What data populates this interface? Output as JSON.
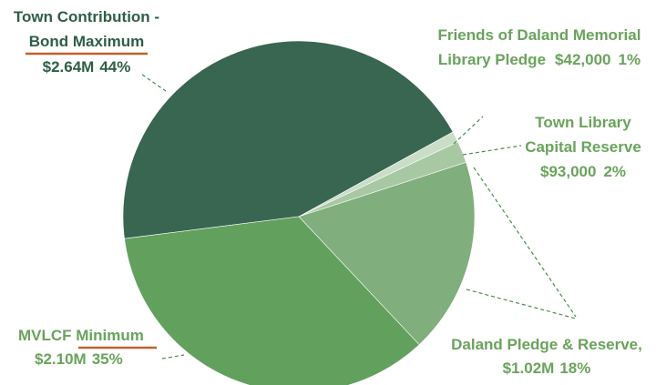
{
  "chart_data": {
    "type": "pie",
    "categories": [
      [
        "Town Contribution -",
        "Bond Maximum"
      ],
      [
        "Friends of Daland Memorial",
        "Library Pledge"
      ],
      [
        "Town Library",
        "Capital Reserve"
      ],
      [
        "Daland Pledge & Reserve,"
      ],
      [
        "MVLCF Minimum"
      ]
    ],
    "values": [
      44,
      1,
      2,
      18,
      35
    ],
    "value_labels": [
      "44%",
      "1%",
      "2%",
      "18%",
      "35%"
    ],
    "amounts": [
      "$2.64M",
      "$42,000",
      "$93,000",
      "$1.02M",
      "$2.10M"
    ],
    "colors": [
      "#386651",
      "#c9ddc7",
      "#a7c8a3",
      "#80ae7d",
      "#62a05d"
    ]
  }
}
